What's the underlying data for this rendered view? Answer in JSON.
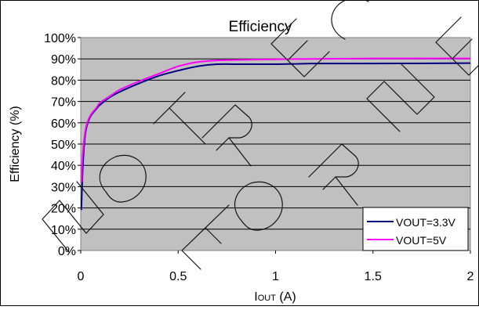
{
  "chart_data": {
    "type": "line",
    "title": "Efficiency",
    "xlabel": "I",
    "xlabel_sub": "OUT",
    "xlabel_unit": " (A)",
    "ylabel": "Efficiency (%)",
    "xlim": [
      0,
      2
    ],
    "ylim": [
      0,
      100
    ],
    "x_ticks": [
      0,
      0.5,
      1,
      1.5,
      2
    ],
    "x_tick_labels": [
      "0",
      "0.5",
      "1",
      "1.5",
      "2"
    ],
    "y_ticks": [
      0,
      10,
      20,
      30,
      40,
      50,
      60,
      70,
      80,
      90,
      100
    ],
    "y_tick_labels": [
      "0%",
      "10%",
      "20%",
      "30%",
      "40%",
      "50%",
      "60%",
      "70%",
      "80%",
      "90%",
      "100%"
    ],
    "grid": true,
    "legend_position": "bottom-right",
    "plot_background": "#c0c0c0",
    "watermark": "NOT RECOMMENDED FOR NEW DESIGNS",
    "series": [
      {
        "name": "VOUT=3.3V",
        "color": "#000080",
        "x": [
          0.003,
          0.01,
          0.02,
          0.03,
          0.05,
          0.08,
          0.1,
          0.15,
          0.2,
          0.3,
          0.4,
          0.5,
          0.6,
          0.7,
          0.8,
          1.0,
          1.2,
          1.5,
          2.0
        ],
        "y": [
          19,
          38,
          52,
          58,
          63,
          66.5,
          68.5,
          72,
          74.5,
          78.5,
          82,
          84.5,
          86.5,
          87.5,
          87.5,
          87.5,
          87.8,
          87.8,
          88
        ]
      },
      {
        "name": "VOUT=5V",
        "color": "#ff00ff",
        "x": [
          0.003,
          0.01,
          0.02,
          0.03,
          0.05,
          0.08,
          0.1,
          0.15,
          0.2,
          0.3,
          0.4,
          0.5,
          0.6,
          0.7,
          0.8,
          1.0,
          1.2,
          1.5,
          2.0
        ],
        "y": [
          32,
          45,
          54,
          59,
          63.5,
          67,
          69.5,
          72.5,
          75.5,
          79.5,
          83,
          86.5,
          88.5,
          89.3,
          89.5,
          89.8,
          90,
          90.2,
          90.2
        ]
      }
    ]
  }
}
